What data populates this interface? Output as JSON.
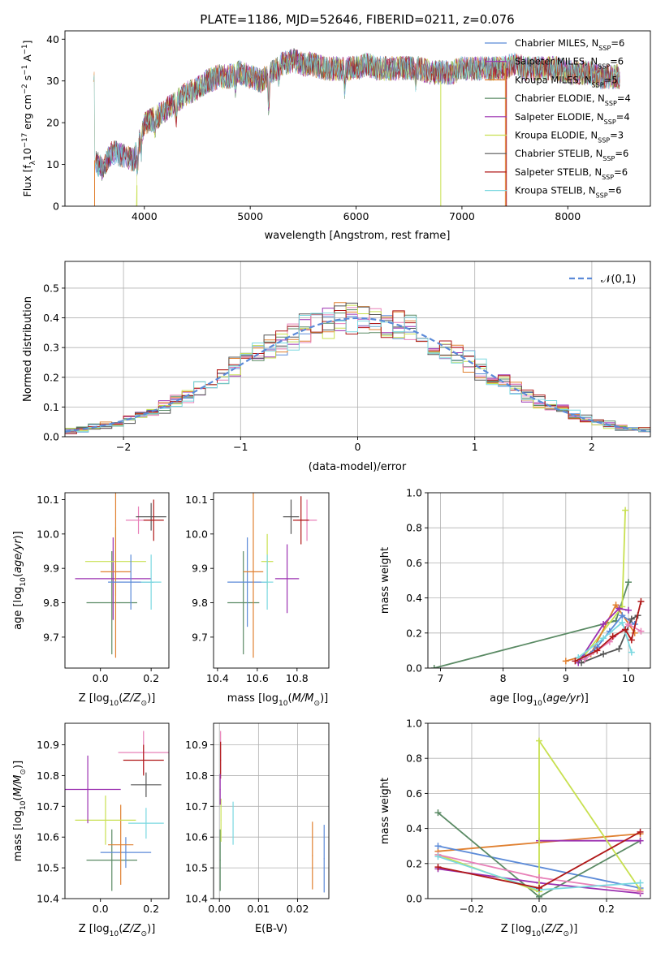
{
  "figure_title": "PLATE=1186, MJD=52646, FIBERID=0211, z=0.076",
  "colors": {
    "chabrier_miles": "#5b8ad8",
    "salpeter_miles": "#9b30b0",
    "kroupa_miles": "#e08030",
    "chabrier_elodie": "#5a8a64",
    "salpeter_elodie": "#9b30b0",
    "kroupa_elodie": "#c8e050",
    "chabrier_stelib": "#555555",
    "salpeter_stelib": "#b01818",
    "kroupa_stelib": "#7ad8e0",
    "pink": "#e880b8",
    "normal_curve": "#5b8ad8"
  },
  "chart_data": [
    {
      "id": "spectrum",
      "type": "line",
      "title": "PLATE=1186, MJD=52646, FIBERID=0211, z=0.076",
      "xlabel": "wavelength [Angstrom, rest frame]",
      "ylabel": "Flux [f_λ 10^-17 erg cm^-2 s^-1 A^-1]",
      "xlim": [
        3250,
        8780
      ],
      "ylim": [
        0,
        42
      ],
      "xticks": [
        4000,
        5000,
        6000,
        7000,
        8000
      ],
      "yticks": [
        0,
        10,
        20,
        30,
        40
      ],
      "legend": "top-right",
      "legend_entries": [
        {
          "name": "Chabrier MILES, N_SSP=6",
          "base": "Chabrier MILES, N",
          "sub": "SSP",
          "rest": "=6",
          "color": "#5b8ad8"
        },
        {
          "name": "Salpeter MILES, N_SSP=6",
          "base": "Salpeter MILES, N",
          "sub": "SSP",
          "rest": "=6",
          "color": "#9b30b0"
        },
        {
          "name": "Kroupa MILES, N_SSP=5",
          "base": "Kroupa MILES, N",
          "sub": "SSP",
          "rest": "=5",
          "color": "#e08030"
        },
        {
          "name": "Chabrier ELODIE, N_SSP=4",
          "base": "Chabrier ELODIE, N",
          "sub": "SSP",
          "rest": "=4",
          "color": "#5a8a64"
        },
        {
          "name": "Salpeter ELODIE, N_SSP=4",
          "base": "Salpeter ELODIE, N",
          "sub": "SSP",
          "rest": "=4",
          "color": "#9b30b0"
        },
        {
          "name": "Kroupa ELODIE, N_SSP=3",
          "base": "Kroupa ELODIE, N",
          "sub": "SSP",
          "rest": "=3",
          "color": "#c8e050"
        },
        {
          "name": "Chabrier STELIB, N_SSP=6",
          "base": "Chabrier STELIB, N",
          "sub": "SSP",
          "rest": "=6",
          "color": "#555555"
        },
        {
          "name": "Salpeter STELIB, N_SSP=6",
          "base": "Salpeter STELIB, N",
          "sub": "SSP",
          "rest": "=6",
          "color": "#b01818"
        },
        {
          "name": "Kroupa STELIB, N_SSP=6",
          "base": "Kroupa STELIB, N",
          "sub": "SSP",
          "rest": "=6",
          "color": "#7ad8e0"
        }
      ],
      "envelope": {
        "x": [
          3530,
          3600,
          3700,
          3800,
          3900,
          3950,
          4000,
          4100,
          4200,
          4300,
          4400,
          4500,
          4600,
          4700,
          4800,
          4900,
          5000,
          5100,
          5200,
          5300,
          5400,
          5500,
          5600,
          5700,
          5800,
          5900,
          6000,
          6100,
          6200,
          6300,
          6400,
          6500,
          6600,
          6700,
          6800,
          6900,
          7000,
          7100,
          7200,
          7300,
          7400,
          7500,
          7600,
          7700,
          7800,
          7900,
          8000,
          8100,
          8200,
          8300,
          8400,
          8480
        ],
        "y": [
          11,
          9,
          13,
          12,
          11,
          15,
          20,
          21,
          23,
          25,
          27,
          28,
          30,
          31,
          31,
          32,
          31,
          30,
          32,
          34,
          35,
          34,
          34,
          33,
          33,
          33,
          33,
          34,
          33,
          33,
          33,
          33,
          33,
          32,
          32,
          32,
          33,
          33,
          33,
          33,
          33,
          34,
          33,
          33,
          33,
          33,
          32,
          32,
          32,
          31,
          31,
          31
        ]
      }
    },
    {
      "id": "residual-histogram",
      "type": "bar",
      "xlabel": "(data-model)/error",
      "ylabel": "Normed distribution",
      "xlim": [
        -2.5,
        2.5
      ],
      "ylim": [
        0,
        0.59
      ],
      "xticks": [
        -2,
        -1,
        0,
        1,
        2
      ],
      "yticks": [
        0.0,
        0.1,
        0.2,
        0.3,
        0.4,
        0.5
      ],
      "legend": "top-right",
      "legend_entries": [
        {
          "name": "𝒩(0,1)",
          "color": "#5b8ad8"
        }
      ],
      "bin_width": 0.1
    },
    {
      "id": "age-vs-Z",
      "type": "scatter",
      "xlabel": "Z [log10(Z/Z⊙)]",
      "ylabel": "age [log10(age/yr)]",
      "xlim": [
        -0.14,
        0.27
      ],
      "ylim": [
        9.61,
        10.12
      ],
      "xticks": [
        0.0,
        0.2
      ],
      "yticks": [
        9.7,
        9.8,
        9.9,
        10.0,
        10.1
      ],
      "points": [
        {
          "x": 0.045,
          "y": 9.8,
          "xerr": 0.1,
          "yerr": 0.15,
          "color": "#5a8a64"
        },
        {
          "x": 0.05,
          "y": 9.87,
          "xerr": 0.15,
          "yerr": 0.12,
          "color": "#9b30b0"
        },
        {
          "x": 0.06,
          "y": 9.92,
          "xerr": 0.12,
          "yerr": 0.1,
          "color": "#c8e050"
        },
        {
          "x": 0.06,
          "y": 9.89,
          "xerr": 0.06,
          "yerr": 0.25,
          "color": "#e08030"
        },
        {
          "x": 0.12,
          "y": 9.86,
          "xerr": 0.09,
          "yerr": 0.08,
          "color": "#5b8ad8"
        },
        {
          "x": 0.2,
          "y": 9.86,
          "xerr": 0.04,
          "yerr": 0.08,
          "color": "#7ad8e0"
        },
        {
          "x": 0.15,
          "y": 10.04,
          "xerr": 0.05,
          "yerr": 0.04,
          "color": "#e880b8"
        },
        {
          "x": 0.2,
          "y": 10.05,
          "xerr": 0.06,
          "yerr": 0.04,
          "color": "#555555"
        },
        {
          "x": 0.21,
          "y": 10.04,
          "xerr": 0.04,
          "yerr": 0.06,
          "color": "#b01818"
        }
      ]
    },
    {
      "id": "age-vs-mass",
      "type": "scatter",
      "xlabel": "mass [log10(M/M⊙)]",
      "ylabel": "",
      "xlim": [
        10.38,
        10.96
      ],
      "ylim": [
        9.61,
        10.12
      ],
      "xticks": [
        10.4,
        10.6,
        10.8
      ],
      "yticks": [
        9.7,
        9.8,
        9.9,
        10.0,
        10.1
      ],
      "points": [
        {
          "x": 10.53,
          "y": 9.8,
          "xerr": 0.08,
          "yerr": 0.15,
          "color": "#5a8a64"
        },
        {
          "x": 10.55,
          "y": 9.86,
          "xerr": 0.1,
          "yerr": 0.13,
          "color": "#5b8ad8"
        },
        {
          "x": 10.58,
          "y": 9.89,
          "xerr": 0.05,
          "yerr": 0.25,
          "color": "#e08030"
        },
        {
          "x": 10.65,
          "y": 9.92,
          "xerr": 0.03,
          "yerr": 0.08,
          "color": "#c8e050"
        },
        {
          "x": 10.65,
          "y": 9.86,
          "xerr": 0.03,
          "yerr": 0.08,
          "color": "#7ad8e0"
        },
        {
          "x": 10.75,
          "y": 9.87,
          "xerr": 0.06,
          "yerr": 0.1,
          "color": "#9b30b0"
        },
        {
          "x": 10.77,
          "y": 10.05,
          "xerr": 0.04,
          "yerr": 0.05,
          "color": "#555555"
        },
        {
          "x": 10.85,
          "y": 10.04,
          "xerr": 0.05,
          "yerr": 0.06,
          "color": "#e880b8"
        },
        {
          "x": 10.82,
          "y": 10.04,
          "xerr": 0.04,
          "yerr": 0.07,
          "color": "#b01818"
        }
      ]
    },
    {
      "id": "massweight-vs-age",
      "type": "line",
      "xlabel": "age [log10(age/yr)]",
      "ylabel": "mass weight",
      "xlim": [
        6.8,
        10.35
      ],
      "ylim": [
        0,
        1.0
      ],
      "xticks": [
        7,
        8,
        9,
        10
      ],
      "yticks": [
        0.0,
        0.2,
        0.4,
        0.6,
        0.8,
        1.0
      ],
      "series": [
        {
          "color": "#5a8a64",
          "x": [
            6.9,
            9.8,
            10.0
          ],
          "y": [
            0.0,
            0.27,
            0.49
          ]
        },
        {
          "color": "#c8e050",
          "x": [
            9.25,
            9.9,
            9.95
          ],
          "y": [
            0.05,
            0.35,
            0.9
          ]
        },
        {
          "color": "#e08030",
          "x": [
            9.0,
            9.4,
            9.8,
            10.1
          ],
          "y": [
            0.04,
            0.08,
            0.36,
            0.2
          ]
        },
        {
          "color": "#5b8ad8",
          "x": [
            9.3,
            9.5,
            9.7,
            9.9,
            10.1
          ],
          "y": [
            0.06,
            0.12,
            0.21,
            0.3,
            0.25
          ]
        },
        {
          "color": "#9b30b0",
          "x": [
            9.2,
            9.6,
            9.85,
            10.0
          ],
          "y": [
            0.03,
            0.25,
            0.34,
            0.33
          ]
        },
        {
          "color": "#555555",
          "x": [
            9.25,
            9.6,
            9.85,
            10.05,
            10.15
          ],
          "y": [
            0.03,
            0.08,
            0.11,
            0.28,
            0.3
          ]
        },
        {
          "color": "#e880b8",
          "x": [
            9.3,
            9.7,
            10.0,
            10.2
          ],
          "y": [
            0.05,
            0.15,
            0.25,
            0.21
          ]
        },
        {
          "color": "#7ad8e0",
          "x": [
            9.2,
            9.6,
            9.9,
            10.05
          ],
          "y": [
            0.06,
            0.17,
            0.26,
            0.09
          ]
        },
        {
          "color": "#b01818",
          "x": [
            9.15,
            9.5,
            9.75,
            9.95,
            10.05,
            10.2
          ],
          "y": [
            0.04,
            0.1,
            0.18,
            0.22,
            0.16,
            0.38
          ]
        }
      ]
    },
    {
      "id": "mass-vs-Z",
      "type": "scatter",
      "xlabel": "Z [log10(Z/Z⊙)]",
      "ylabel": "mass [log10(M/M⊙)]",
      "xlim": [
        -0.14,
        0.27
      ],
      "ylim": [
        10.4,
        10.97
      ],
      "xticks": [
        0.0,
        0.2
      ],
      "yticks": [
        10.4,
        10.5,
        10.6,
        10.7,
        10.8,
        10.9
      ],
      "points": [
        {
          "x": 0.045,
          "y": 10.525,
          "xerr": 0.1,
          "yerr": 0.1,
          "color": "#5a8a64"
        },
        {
          "x": 0.1,
          "y": 10.55,
          "xerr": 0.1,
          "yerr": 0.05,
          "color": "#5b8ad8"
        },
        {
          "x": 0.08,
          "y": 10.575,
          "xerr": 0.05,
          "yerr": 0.13,
          "color": "#e08030"
        },
        {
          "x": 0.02,
          "y": 10.655,
          "xerr": 0.12,
          "yerr": 0.08,
          "color": "#c8e050"
        },
        {
          "x": 0.18,
          "y": 10.645,
          "xerr": 0.07,
          "yerr": 0.05,
          "color": "#7ad8e0"
        },
        {
          "x": -0.05,
          "y": 10.755,
          "xerr": 0.13,
          "yerr": 0.11,
          "color": "#9b30b0"
        },
        {
          "x": 0.18,
          "y": 10.77,
          "xerr": 0.06,
          "yerr": 0.04,
          "color": "#555555"
        },
        {
          "x": 0.17,
          "y": 10.875,
          "xerr": 0.1,
          "yerr": 0.07,
          "color": "#e880b8"
        },
        {
          "x": 0.17,
          "y": 10.85,
          "xerr": 0.08,
          "yerr": 0.05,
          "color": "#b01818"
        }
      ]
    },
    {
      "id": "mass-vs-EBV",
      "type": "scatter",
      "xlabel": "E(B-V)",
      "ylabel": "",
      "xlim": [
        -0.0015,
        0.028
      ],
      "ylim": [
        10.4,
        10.97
      ],
      "xticks": [
        0.0,
        0.01,
        0.02
      ],
      "yticks": [
        10.4,
        10.5,
        10.6,
        10.7,
        10.8,
        10.9
      ],
      "points": [
        {
          "x": 0.0002,
          "y": 10.525,
          "xerr": 0.0001,
          "yerr": 0.1,
          "color": "#5a8a64"
        },
        {
          "x": 0.0004,
          "y": 10.655,
          "xerr": 0.0001,
          "yerr": 0.07,
          "color": "#c8e050"
        },
        {
          "x": 0.0003,
          "y": 10.875,
          "xerr": 0.0001,
          "yerr": 0.07,
          "color": "#e880b8"
        },
        {
          "x": 0.0003,
          "y": 10.85,
          "xerr": 0.0001,
          "yerr": 0.06,
          "color": "#b01818"
        },
        {
          "x": 0.0002,
          "y": 10.755,
          "xerr": 0.0001,
          "yerr": 0.05,
          "color": "#9b30b0"
        },
        {
          "x": 0.0035,
          "y": 10.645,
          "xerr": 0.0001,
          "yerr": 0.07,
          "color": "#7ad8e0"
        },
        {
          "x": 0.0238,
          "y": 10.54,
          "xerr": 0.0001,
          "yerr": 0.11,
          "color": "#e08030"
        },
        {
          "x": 0.0268,
          "y": 10.53,
          "xerr": 0.0001,
          "yerr": 0.11,
          "color": "#5b8ad8"
        }
      ]
    },
    {
      "id": "massweight-vs-Z",
      "type": "line",
      "xlabel": "Z [log10(Z/Z⊙)]",
      "ylabel": "mass weight",
      "xlim": [
        -0.33,
        0.33
      ],
      "ylim": [
        0,
        1.0
      ],
      "xticks": [
        -0.2,
        0.0,
        0.2
      ],
      "yticks": [
        0.0,
        0.2,
        0.4,
        0.6,
        0.8,
        1.0
      ],
      "series": [
        {
          "color": "#e08030",
          "x": [
            -0.3,
            0.0,
            0.3
          ],
          "y": [
            0.27,
            0.32,
            0.37
          ]
        },
        {
          "color": "#5b8ad8",
          "x": [
            -0.3,
            0.3
          ],
          "y": [
            0.3,
            0.06
          ]
        },
        {
          "color": "#5a8a64",
          "x": [
            -0.3,
            0.0,
            0.3
          ],
          "y": [
            0.49,
            0.01,
            0.33
          ]
        },
        {
          "color": "#9b30b0",
          "x": [
            -0.3,
            0.0,
            0.3
          ],
          "y": [
            0.17,
            0.09,
            0.03
          ]
        },
        {
          "color": "#9b30b0",
          "x": [
            0.0,
            0.3
          ],
          "y": [
            0.33,
            0.33
          ]
        },
        {
          "color": "#c8e050",
          "x": [
            -0.3,
            0.0,
            0.0,
            0.3
          ],
          "y": [
            0.25,
            0.04,
            0.9,
            0.05
          ]
        },
        {
          "color": "#e880b8",
          "x": [
            -0.3,
            0.0,
            0.3
          ],
          "y": [
            0.25,
            0.12,
            0.04
          ]
        },
        {
          "color": "#7ad8e0",
          "x": [
            -0.3,
            0.0,
            0.3
          ],
          "y": [
            0.24,
            0.05,
            0.09
          ]
        },
        {
          "color": "#b01818",
          "x": [
            -0.3,
            0.0,
            0.3
          ],
          "y": [
            0.18,
            0.06,
            0.38
          ]
        }
      ]
    }
  ]
}
